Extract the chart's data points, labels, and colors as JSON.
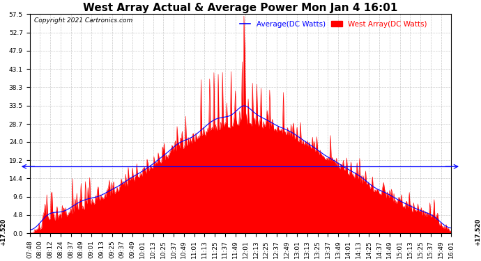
{
  "title": "West Array Actual & Average Power Mon Jan 4 16:01",
  "copyright": "Copyright 2021 Cartronics.com",
  "legend_avg": "Average(DC Watts)",
  "legend_west": "West Array(DC Watts)",
  "legend_avg_color": "blue",
  "legend_west_color": "red",
  "background_color": "#ffffff",
  "grid_color": "#bbbbbb",
  "hline_value": 17.52,
  "hline_color": "blue",
  "ylim": [
    0.0,
    57.5
  ],
  "yticks": [
    0.0,
    4.8,
    9.6,
    14.4,
    19.2,
    24.0,
    28.7,
    33.5,
    38.3,
    43.1,
    47.9,
    52.7,
    57.5
  ],
  "ylabel_annot": "+17.520",
  "fill_color": "red",
  "title_fontsize": 11,
  "tick_fontsize": 6.5,
  "copyright_fontsize": 6.5,
  "legend_fontsize": 7.5,
  "num_points": 493
}
